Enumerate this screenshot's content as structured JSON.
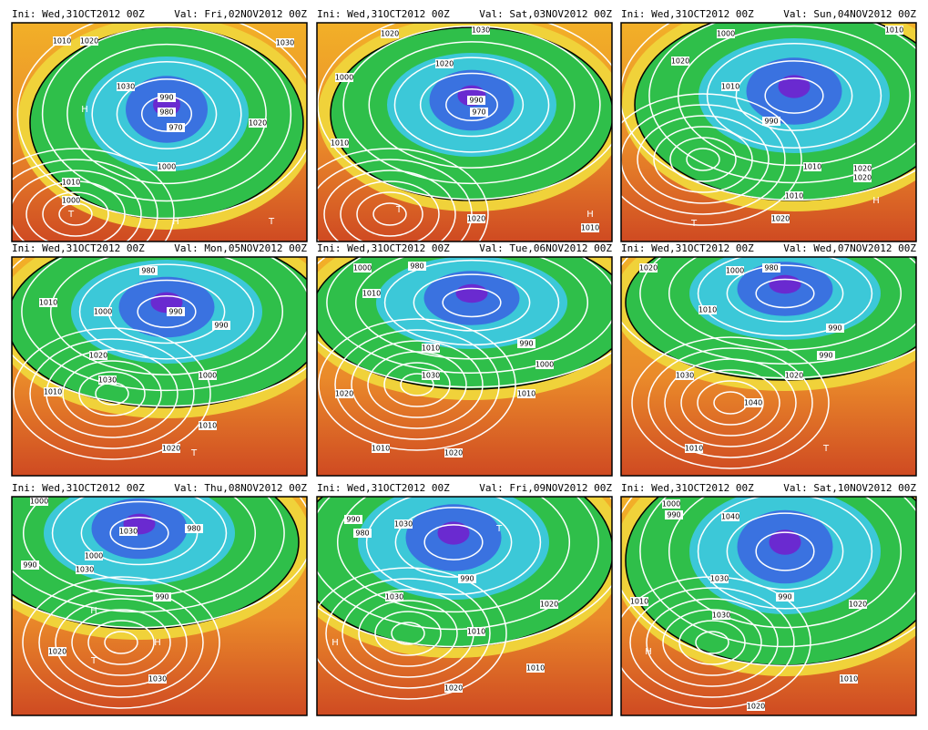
{
  "panels": [
    {
      "init": "Ini: Wed,31OCT2012 00Z",
      "valid": "Val: Fri,02NOV2012 00Z",
      "labels": [
        "1010",
        "1020",
        "1030",
        "990",
        "980",
        "970",
        "1000",
        "1010",
        "1000",
        "T",
        "H",
        "T",
        "1020",
        "1030",
        "H"
      ]
    },
    {
      "init": "Ini: Wed,31OCT2012 00Z",
      "valid": "Val: Sat,03NOV2012 00Z",
      "labels": [
        "1020",
        "1000",
        "1020",
        "990",
        "970",
        "1010",
        "T",
        "1020",
        "H",
        "1010",
        "1030"
      ]
    },
    {
      "init": "Ini: Wed,31OCT2012 00Z",
      "valid": "Val: Sun,04NOV2012 00Z",
      "labels": [
        "1020",
        "1000",
        "1010",
        "990",
        "1010",
        "1020",
        "1020",
        "1010",
        "T",
        "1020",
        "H",
        "1010"
      ]
    },
    {
      "init": "Ini: Wed,31OCT2012 00Z",
      "valid": "Val: Mon,05NOV2012 00Z",
      "labels": [
        "1010",
        "1000",
        "980",
        "990",
        "990",
        "1020",
        "1030",
        "1010",
        "1010",
        "1020",
        "T",
        "1000"
      ]
    },
    {
      "init": "Ini: Wed,31OCT2012 00Z",
      "valid": "Val: Tue,06NOV2012 00Z",
      "labels": [
        "1000",
        "1010",
        "980",
        "1010",
        "1030",
        "1020",
        "1010",
        "1020",
        "990",
        "1000",
        "1010"
      ]
    },
    {
      "init": "Ini: Wed,31OCT2012 00Z",
      "valid": "Val: Wed,07NOV2012 00Z",
      "labels": [
        "1020",
        "1000",
        "980",
        "990",
        "1010",
        "1030",
        "1040",
        "1010",
        "1020",
        "990",
        "T"
      ]
    },
    {
      "init": "Ini: Wed,31OCT2012 00Z",
      "valid": "Val: Thu,08NOV2012 00Z",
      "labels": [
        "1000",
        "1030",
        "980",
        "990",
        "1000",
        "990",
        "1030",
        "H",
        "1020",
        "H",
        "T",
        "1030"
      ]
    },
    {
      "init": "Ini: Wed,31OCT2012 00Z",
      "valid": "Val: Fri,09NOV2012 00Z",
      "labels": [
        "990",
        "980",
        "1030",
        "T",
        "990",
        "1030",
        "1010",
        "1020",
        "H",
        "1010",
        "1020"
      ]
    },
    {
      "init": "Ini: Wed,31OCT2012 00Z",
      "valid": "Val: Sat,10NOV2012 00Z",
      "labels": [
        "1000",
        "990",
        "1040",
        "1030",
        "1010",
        "990",
        "1030",
        "H",
        "1020",
        "1010",
        "1020"
      ]
    }
  ]
}
